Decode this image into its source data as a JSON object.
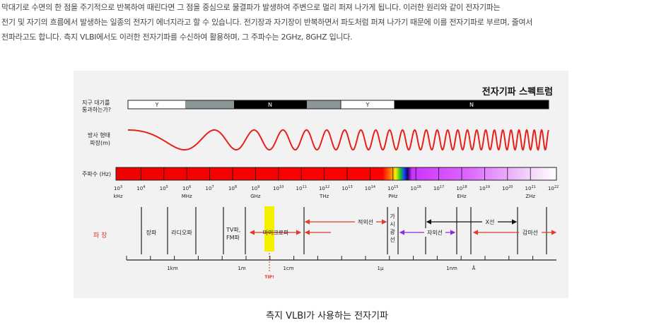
{
  "body_text": {
    "line1": "막대기로 수면의 한 점을 주기적으로 반복하여 때린다면 그 점을 중심으로 물결파가 발생하여 주변으로 멀리 퍼져 나가게 됩니다. 이러한 원리와 같이 전자기파는",
    "line2": "전기 및 자기의 흐름에서 발생하는 일종의 전자기 에너지라고 할 수 있습니다. 전기장과 자기장이 반복하면서 파도처럼 퍼져 나가기 때문에 이를 전자기파로 부르며, 줄여서",
    "line3": "전파라고도 합니다. 측지 VLBI에서도 이러한 전자기파를 수신하여 활용하며, 그 주파수는 2GHz, 8GHZ 입니다."
  },
  "figure": {
    "title": "전자기파 스펙트럼",
    "row_labels": {
      "atmosphere_1": "지구 대기를",
      "atmosphere_2": "통과하는가?",
      "waveform_1": "방사 형태",
      "waveform_2": "파장(m)",
      "frequency": "주파수 (Hz)",
      "wavelength": "파  장"
    },
    "atmosphere_segments": [
      "Y",
      "",
      "N",
      "",
      "Y",
      "N"
    ],
    "frequency_ticks": [
      {
        "exp": "3",
        "unit": "kHz"
      },
      {
        "exp": "4",
        "unit": ""
      },
      {
        "exp": "5",
        "unit": ""
      },
      {
        "exp": "6",
        "unit": "MHz"
      },
      {
        "exp": "7",
        "unit": ""
      },
      {
        "exp": "8",
        "unit": ""
      },
      {
        "exp": "9",
        "unit": "GHz"
      },
      {
        "exp": "10",
        "unit": ""
      },
      {
        "exp": "11",
        "unit": ""
      },
      {
        "exp": "12",
        "unit": "THz"
      },
      {
        "exp": "13",
        "unit": ""
      },
      {
        "exp": "14",
        "unit": ""
      },
      {
        "exp": "15",
        "unit": "PHz"
      },
      {
        "exp": "16",
        "unit": ""
      },
      {
        "exp": "17",
        "unit": ""
      },
      {
        "exp": "18",
        "unit": "EHz"
      },
      {
        "exp": "19",
        "unit": ""
      },
      {
        "exp": "20",
        "unit": ""
      },
      {
        "exp": "21",
        "unit": "ZHz"
      },
      {
        "exp": "22",
        "unit": ""
      }
    ],
    "bands": {
      "long_wave": "장파",
      "radio": "라디오파",
      "tv_fm_1": "TV파,",
      "tv_fm_2": "FM파",
      "microwave": "마이크로파",
      "infrared": "적외선",
      "visible_1": "가",
      "visible_2": "시",
      "visible_3": "광",
      "visible_4": "선",
      "ultraviolet": "자외선",
      "xray": "X선",
      "gamma": "감마선"
    },
    "scale_labels": [
      "1km",
      "1m",
      "1cm",
      "1μ",
      "1nm",
      "Å"
    ],
    "tip": "TIP!",
    "colors": {
      "red_band": "#ff0000",
      "tip_highlight": "#f5f000",
      "arrow_red": "#e23b2a",
      "arrow_purple": "#8a2be2",
      "panel_bg": "#f2f2f2"
    }
  },
  "caption": "측지 VLBI가 사용하는 전자기파"
}
